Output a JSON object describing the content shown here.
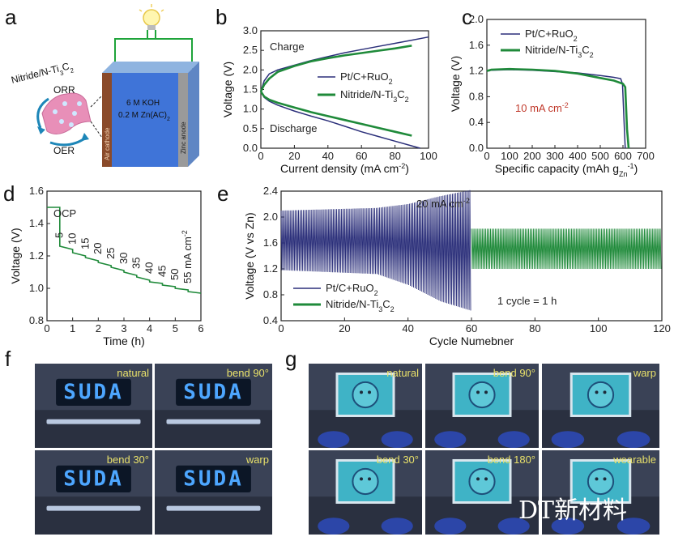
{
  "panels": {
    "a": {
      "letter": "a",
      "catalyst_label": "Nitride/N-Ti",
      "catalyst_sub_3": "3",
      "catalyst_C": "C",
      "catalyst_sub_2": "2",
      "orr": "ORR",
      "oer": "OER",
      "electrolyte_line1": "6 M KOH",
      "electrolyte_line2": "0.2 M Zn(AC)",
      "electrolyte_sub": "2",
      "anode": "Zinc anode",
      "cathode": "Air cathode"
    },
    "b": {
      "letter": "b"
    },
    "c": {
      "letter": "c"
    },
    "d": {
      "letter": "d"
    },
    "e": {
      "letter": "e"
    },
    "f": {
      "letter": "f",
      "tiles": [
        {
          "label": "natural",
          "sign": "SUDA"
        },
        {
          "label": "bend 90°",
          "sign": "SUDA"
        },
        {
          "label": "bend 30°",
          "sign": "SUDA"
        },
        {
          "label": "warp",
          "sign": "SUDA"
        }
      ]
    },
    "g": {
      "letter": "g",
      "tiles": [
        {
          "label": "natural"
        },
        {
          "label": "bend 90°"
        },
        {
          "label": "warp"
        },
        {
          "label": "bend 30°"
        },
        {
          "label": "bend 180°"
        },
        {
          "label": "wearable"
        }
      ]
    }
  },
  "watermark": "DT新材料",
  "colors": {
    "pt": "#2b2f7a",
    "nitride": "#1f8a3a",
    "accent_red": "#c0392b",
    "photo_label": "#e8e06a",
    "sign_blue": "#4da6ff"
  },
  "chart_data": [
    {
      "panel": "b",
      "type": "line",
      "xlabel": "Current density (mA cm",
      "xlabel_sup": "-2",
      "xlabel_end": ")",
      "ylabel": "Voltage (V)",
      "xlim": [
        0,
        100
      ],
      "ylim": [
        0,
        3.0
      ],
      "xticks": [
        0,
        20,
        40,
        60,
        80,
        100
      ],
      "yticks": [
        0.0,
        0.5,
        1.0,
        1.5,
        2.0,
        2.5,
        3.0
      ],
      "annotations": [
        "Charge",
        "Discharge"
      ],
      "legend": {
        "position": "center-right",
        "entries": [
          {
            "name": "Pt/C+RuO",
            "sub": "2",
            "series": "pt"
          },
          {
            "name": "Nitride/N-Ti",
            "sub": "3",
            "mid": "C",
            "sub2": "2",
            "series": "nitride"
          }
        ]
      },
      "series": [
        {
          "name": "Pt/C+RuO2 charge",
          "key": "pt",
          "x": [
            0,
            2,
            5,
            10,
            20,
            30,
            40,
            50,
            60,
            70,
            80,
            90,
            100
          ],
          "y": [
            1.45,
            1.72,
            1.9,
            2.0,
            2.12,
            2.24,
            2.34,
            2.44,
            2.52,
            2.6,
            2.68,
            2.76,
            2.84
          ]
        },
        {
          "name": "Nitride/N-Ti3C2 charge",
          "key": "nitride",
          "x": [
            0,
            2,
            5,
            10,
            20,
            30,
            40,
            50,
            60,
            70,
            80,
            90
          ],
          "y": [
            1.45,
            1.62,
            1.78,
            1.95,
            2.1,
            2.22,
            2.3,
            2.37,
            2.43,
            2.49,
            2.55,
            2.62
          ]
        },
        {
          "name": "Pt/C+RuO2 discharge",
          "key": "pt",
          "x": [
            0,
            2,
            5,
            10,
            20,
            30,
            40,
            50,
            60,
            70,
            80,
            90,
            95
          ],
          "y": [
            1.45,
            1.3,
            1.2,
            1.1,
            0.95,
            0.82,
            0.7,
            0.56,
            0.42,
            0.3,
            0.18,
            0.06,
            0.0
          ]
        },
        {
          "name": "Nitride/N-Ti3C2 discharge",
          "key": "nitride",
          "x": [
            0,
            2,
            5,
            10,
            20,
            30,
            40,
            50,
            60,
            70,
            80,
            90
          ],
          "y": [
            1.45,
            1.32,
            1.24,
            1.16,
            1.04,
            0.92,
            0.82,
            0.72,
            0.62,
            0.52,
            0.42,
            0.32
          ]
        }
      ]
    },
    {
      "panel": "c",
      "type": "line",
      "xlabel": "Specific capacity (mAh g",
      "xlabel_sub": "Zn",
      "xlabel_sup": "-1",
      "xlabel_end": ")",
      "ylabel": "Voltage (V)",
      "xlim": [
        0,
        700
      ],
      "ylim": [
        0,
        2.0
      ],
      "xticks": [
        0,
        100,
        200,
        300,
        400,
        500,
        600,
        700
      ],
      "yticks": [
        0.0,
        0.4,
        0.8,
        1.2,
        1.6,
        2.0
      ],
      "annotation": "10 mA cm",
      "annotation_sup": "-2",
      "legend": {
        "position": "top-right",
        "entries": [
          {
            "name": "Pt/C+RuO",
            "sub": "2",
            "series": "pt"
          },
          {
            "name": "Nitride/N-Ti",
            "sub": "3",
            "mid": "C",
            "sub2": "2",
            "series": "nitride"
          }
        ]
      },
      "series": [
        {
          "name": "Pt/C+RuO2",
          "key": "pt",
          "x": [
            0,
            20,
            100,
            200,
            300,
            400,
            500,
            560,
            590,
            598,
            605,
            610
          ],
          "y": [
            1.2,
            1.21,
            1.22,
            1.21,
            1.19,
            1.17,
            1.13,
            1.1,
            1.08,
            1.0,
            0.4,
            0.0
          ]
        },
        {
          "name": "Nitride/N-Ti3C2",
          "key": "nitride",
          "x": [
            0,
            20,
            100,
            200,
            300,
            400,
            500,
            560,
            600,
            610,
            618,
            625
          ],
          "y": [
            1.2,
            1.22,
            1.23,
            1.22,
            1.2,
            1.16,
            1.09,
            1.05,
            1.0,
            0.95,
            0.3,
            0.0
          ]
        }
      ]
    },
    {
      "panel": "d",
      "type": "line",
      "xlabel": "Time (h)",
      "ylabel": "Voltage (V)",
      "xlim": [
        0,
        6
      ],
      "ylim": [
        0.8,
        1.6
      ],
      "xticks": [
        0,
        1,
        2,
        3,
        4,
        5,
        6
      ],
      "yticks": [
        0.8,
        1.0,
        1.2,
        1.4,
        1.6
      ],
      "annotation": "OCP",
      "step_labels": [
        "5",
        "10",
        "15",
        "20",
        "25",
        "30",
        "35",
        "40",
        "45",
        "50",
        "55 mA cm"
      ],
      "step_label_sup": "-2",
      "series": [
        {
          "name": "Nitride/N-Ti3C2",
          "key": "nitride",
          "x": [
            0,
            0.5,
            0.5,
            1.0,
            1.0,
            1.5,
            1.5,
            2.0,
            2.0,
            2.5,
            2.5,
            3.0,
            3.0,
            3.5,
            3.5,
            4.0,
            4.0,
            4.5,
            4.5,
            5.0,
            5.0,
            5.5,
            5.5,
            6.0
          ],
          "y": [
            1.5,
            1.5,
            1.26,
            1.24,
            1.22,
            1.2,
            1.19,
            1.17,
            1.16,
            1.14,
            1.13,
            1.11,
            1.1,
            1.08,
            1.07,
            1.05,
            1.04,
            1.03,
            1.02,
            1.01,
            1.0,
            0.99,
            0.98,
            0.97
          ]
        }
      ]
    },
    {
      "panel": "e",
      "type": "line",
      "xlabel": "Cycle Numebner",
      "ylabel": "Voltage (V vs Zn)",
      "xlim": [
        0,
        120
      ],
      "ylim": [
        0.4,
        2.4
      ],
      "xticks": [
        0,
        20,
        40,
        60,
        80,
        100,
        120
      ],
      "yticks": [
        0.4,
        0.8,
        1.2,
        1.6,
        2.0,
        2.4
      ],
      "annotation": "20 mA cm",
      "annotation_sup": "-2",
      "note": "1 cycle = 1 h",
      "legend": {
        "position": "bottom-left",
        "entries": [
          {
            "name": "Pt/C+RuO",
            "sub": "2",
            "series": "pt"
          },
          {
            "name": "Nitride/N-Ti",
            "sub": "3",
            "mid": "C",
            "sub2": "2",
            "series": "nitride"
          }
        ]
      },
      "series": [
        {
          "name": "Pt/C+RuO2",
          "key": "pt",
          "cycles_end": 60,
          "charge_x": [
            0,
            30,
            40,
            50,
            60
          ],
          "charge_y": [
            2.1,
            2.14,
            2.2,
            2.32,
            2.42
          ],
          "discharge_x": [
            0,
            30,
            40,
            50,
            60
          ],
          "discharge_y": [
            1.18,
            1.12,
            0.95,
            0.7,
            0.55
          ]
        },
        {
          "name": "Nitride/N-Ti3C2",
          "key": "nitride",
          "cycles_start": 60,
          "cycles_end": 120,
          "charge_x": [
            60,
            120
          ],
          "charge_y": [
            1.82,
            1.82
          ],
          "discharge_x": [
            60,
            120
          ],
          "discharge_y": [
            1.2,
            1.2
          ]
        }
      ]
    }
  ]
}
